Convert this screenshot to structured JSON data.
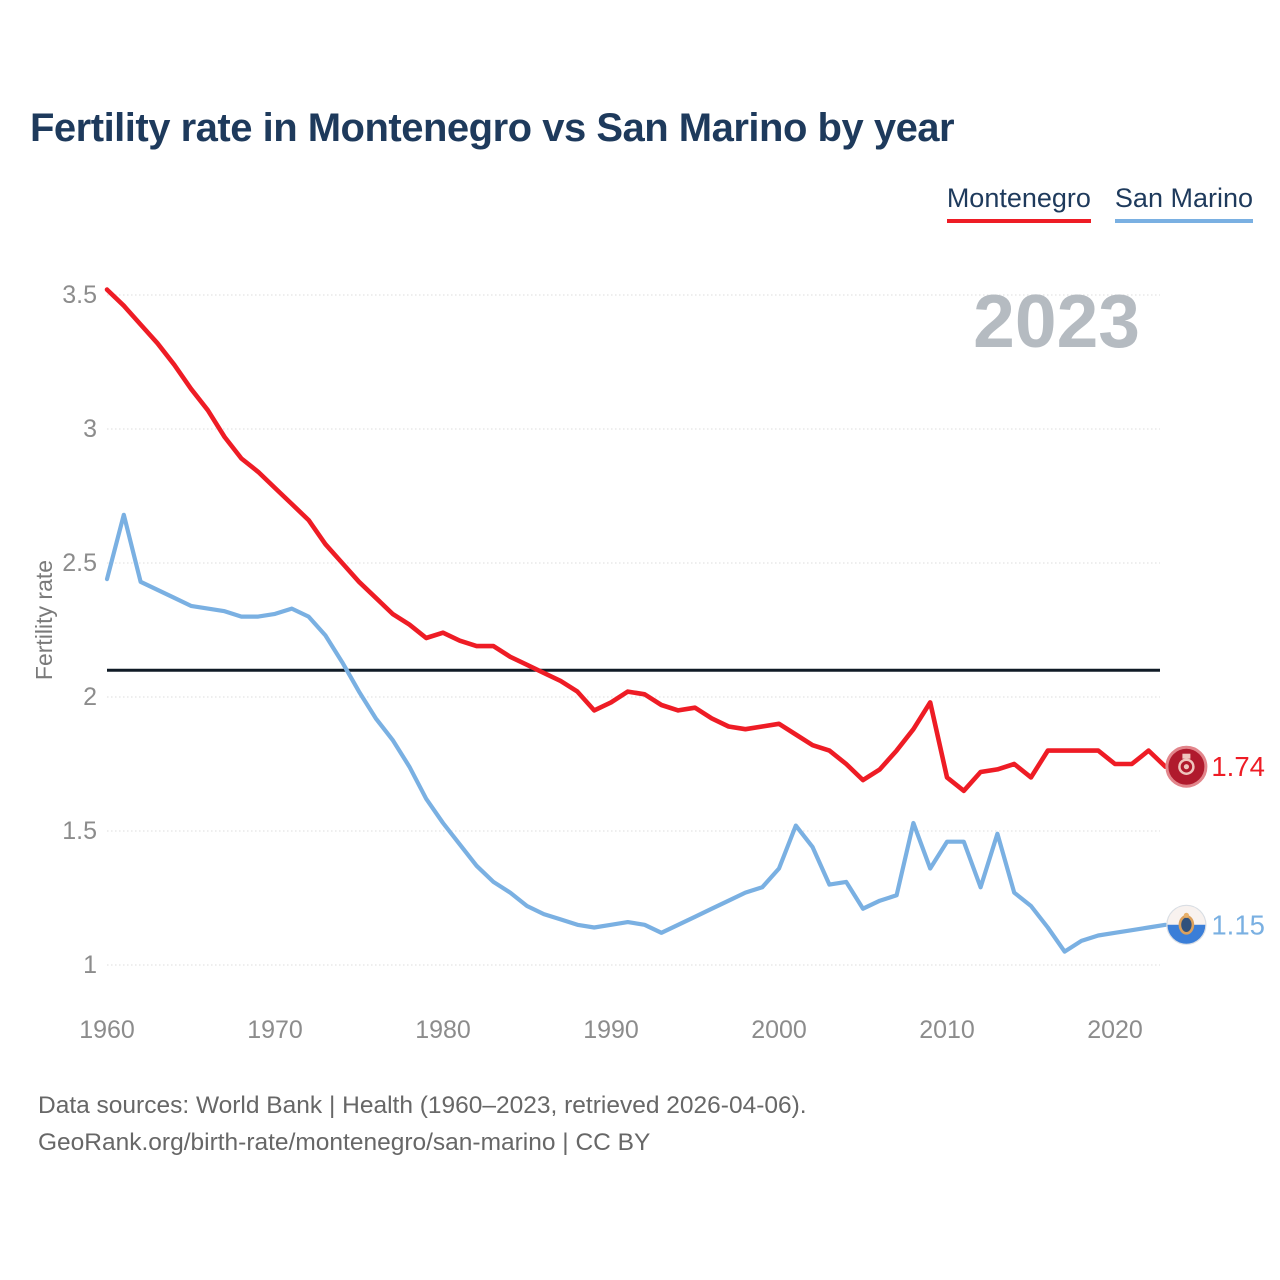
{
  "header": {
    "title": "Fertility rate in Montenegro vs San Marino by year"
  },
  "legend": {
    "items": [
      {
        "label": "Montenegro",
        "color": "#ee1c25"
      },
      {
        "label": "San Marino",
        "color": "#7ab0e2"
      }
    ]
  },
  "chart": {
    "watermark": "2023",
    "ylabel": "Fertility rate",
    "end_labels": [
      {
        "text": "1.74",
        "color": "#ee1c25",
        "series": "Montenegro"
      },
      {
        "text": "1.15",
        "color": "#7ab0e2",
        "series": "San Marino"
      }
    ],
    "colors": {
      "grid": "#e3e3e3",
      "reference_line": "#101b26",
      "tick_text": "#8c8c8c",
      "ylabel_text": "#7a7a7a",
      "watermark_text": "#b5bbc1"
    }
  },
  "chart_data": {
    "type": "line",
    "title": "Fertility rate in Montenegro vs San Marino by year",
    "xlabel": "",
    "ylabel": "Fertility rate",
    "grid": true,
    "legend_position": "top-right",
    "xlim": [
      1960,
      2023
    ],
    "ylim": [
      0.95,
      3.6
    ],
    "xticks": [
      1960,
      1970,
      1980,
      1990,
      2000,
      2010,
      2020
    ],
    "yticks": [
      1,
      1.5,
      2,
      2.5,
      3,
      3.5
    ],
    "reference_line": 2.1,
    "x": [
      1960,
      1961,
      1962,
      1963,
      1964,
      1965,
      1966,
      1967,
      1968,
      1969,
      1970,
      1971,
      1972,
      1973,
      1974,
      1975,
      1976,
      1977,
      1978,
      1979,
      1980,
      1981,
      1982,
      1983,
      1984,
      1985,
      1986,
      1987,
      1988,
      1989,
      1990,
      1991,
      1992,
      1993,
      1994,
      1995,
      1996,
      1997,
      1998,
      1999,
      2000,
      2001,
      2002,
      2003,
      2004,
      2005,
      2006,
      2007,
      2008,
      2009,
      2010,
      2011,
      2012,
      2013,
      2014,
      2015,
      2016,
      2017,
      2018,
      2019,
      2020,
      2021,
      2022,
      2023
    ],
    "series": [
      {
        "name": "Montenegro",
        "color": "#ee1c25",
        "final_value": 1.74,
        "values": [
          3.52,
          3.46,
          3.39,
          3.32,
          3.24,
          3.15,
          3.07,
          2.97,
          2.89,
          2.84,
          2.78,
          2.72,
          2.66,
          2.57,
          2.5,
          2.43,
          2.37,
          2.31,
          2.27,
          2.22,
          2.24,
          2.21,
          2.19,
          2.19,
          2.15,
          2.12,
          2.09,
          2.06,
          2.02,
          1.95,
          1.98,
          2.02,
          2.01,
          1.97,
          1.95,
          1.96,
          1.92,
          1.89,
          1.88,
          1.89,
          1.9,
          1.86,
          1.82,
          1.8,
          1.75,
          1.69,
          1.73,
          1.8,
          1.88,
          1.98,
          1.7,
          1.65,
          1.72,
          1.73,
          1.75,
          1.7,
          1.8,
          1.8,
          1.8,
          1.8,
          1.75,
          1.75,
          1.8,
          1.74
        ]
      },
      {
        "name": "San Marino",
        "color": "#7ab0e2",
        "final_value": 1.15,
        "values": [
          2.44,
          2.68,
          2.43,
          2.4,
          2.37,
          2.34,
          2.33,
          2.32,
          2.3,
          2.3,
          2.31,
          2.33,
          2.3,
          2.23,
          2.13,
          2.02,
          1.92,
          1.84,
          1.74,
          1.62,
          1.53,
          1.45,
          1.37,
          1.31,
          1.27,
          1.22,
          1.19,
          1.17,
          1.15,
          1.14,
          1.15,
          1.16,
          1.15,
          1.12,
          1.15,
          1.18,
          1.21,
          1.24,
          1.27,
          1.29,
          1.36,
          1.52,
          1.44,
          1.3,
          1.31,
          1.21,
          1.24,
          1.26,
          1.53,
          1.36,
          1.46,
          1.46,
          1.29,
          1.49,
          1.27,
          1.22,
          1.14,
          1.05,
          1.09,
          1.11,
          1.12,
          1.13,
          1.14,
          1.15
        ]
      }
    ]
  },
  "footer": {
    "line1": "Data sources: World Bank | Health (1960–2023, retrieved 2026-04-06).",
    "line2": "GeoRank.org/birth-rate/montenegro/san-marino | CC BY"
  }
}
